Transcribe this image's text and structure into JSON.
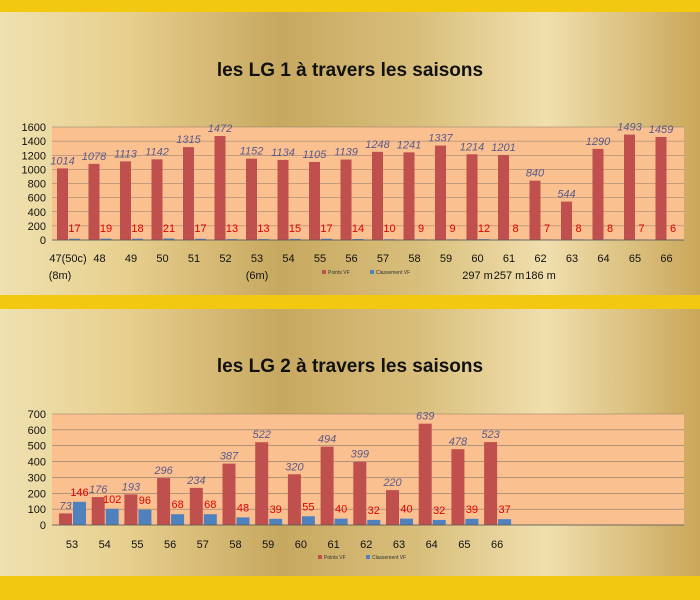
{
  "colors": {
    "points": "#c0504d",
    "classement": "#4f81bd",
    "plot_bg": "#fac090",
    "frame": "#f2c811"
  },
  "chart_data": [
    {
      "type": "bar",
      "title": "les LG 1 à travers les saisons",
      "categories": [
        "47(50c)",
        "48",
        "49",
        "50",
        "51",
        "52",
        "53",
        "54",
        "55",
        "56",
        "57",
        "58",
        "59",
        "60",
        "61",
        "62",
        "63",
        "64",
        "65",
        "66"
      ],
      "sublabels": [
        "(8m)",
        "",
        "",
        "",
        "",
        "",
        "(6m)",
        "",
        "",
        "",
        "",
        "",
        "",
        "297 m",
        "257 m",
        "186 m",
        "",
        "",
        "",
        ""
      ],
      "series": [
        {
          "name": "Points VF",
          "values": [
            1014,
            1078,
            1113,
            1142,
            1315,
            1472,
            1152,
            1134,
            1105,
            1139,
            1248,
            1241,
            1337,
            1214,
            1201,
            840,
            544,
            1290,
            1493,
            1459
          ]
        },
        {
          "name": "Classement VF",
          "values": [
            17,
            19,
            18,
            21,
            17,
            13,
            13,
            15,
            17,
            14,
            10,
            9,
            9,
            12,
            8,
            7,
            8,
            8,
            7,
            6
          ]
        }
      ],
      "yticks": [
        "0",
        "200",
        "400",
        "600",
        "800",
        "1000",
        "1200",
        "1400",
        "1600"
      ],
      "ylim": [
        0,
        1600
      ],
      "grid": true,
      "legend": "bottom"
    },
    {
      "type": "bar",
      "title": "les LG 2 à travers les saisons",
      "categories": [
        "53",
        "54",
        "55",
        "56",
        "57",
        "58",
        "59",
        "60",
        "61",
        "62",
        "63",
        "64",
        "65",
        "66"
      ],
      "series": [
        {
          "name": "Points VF",
          "values": [
            73,
            176,
            193,
            296,
            234,
            387,
            522,
            320,
            494,
            399,
            220,
            639,
            478,
            523
          ]
        },
        {
          "name": "Classement VF",
          "values": [
            146,
            102,
            96,
            68,
            68,
            48,
            39,
            55,
            40,
            32,
            40,
            32,
            39,
            37
          ]
        }
      ],
      "yticks": [
        "0",
        "100",
        "200",
        "300",
        "400",
        "500",
        "600",
        "700"
      ],
      "ylim": [
        0,
        700
      ],
      "grid": true,
      "legend": "bottom"
    }
  ]
}
